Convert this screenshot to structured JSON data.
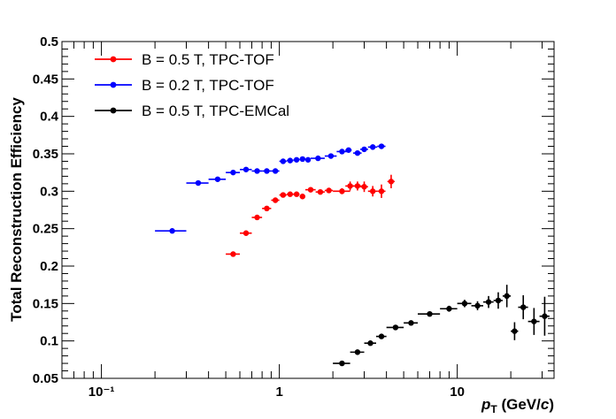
{
  "chart_data": {
    "type": "scatter",
    "title": "",
    "ylabel": "Total Reconstruction Efficiency",
    "xlabel_parts": {
      "p": "p",
      "sub": "T",
      "unit": " (GeV/",
      "c": "c",
      "close": ")"
    },
    "xscale": "log",
    "xlim": [
      0.06,
      35
    ],
    "ylim": [
      0.05,
      0.5
    ],
    "y_ticks": [
      "0.05",
      "0.1",
      "0.15",
      "0.2",
      "0.25",
      "0.3",
      "0.35",
      "0.4",
      "0.45",
      "0.5"
    ],
    "y_tick_values": [
      0.05,
      0.1,
      0.15,
      0.2,
      0.25,
      0.3,
      0.35,
      0.4,
      0.45,
      0.5
    ],
    "x_ticks": [
      "10⁻¹",
      "1",
      "10"
    ],
    "x_tick_values": [
      0.1,
      1,
      10
    ],
    "grid": false,
    "legend_position": "top-left",
    "series": [
      {
        "name": "B = 0.5 T, TPC-TOF",
        "color": "#ff0000",
        "points": [
          {
            "x": 0.55,
            "y": 0.216,
            "xlo": 0.5,
            "xhi": 0.6,
            "err": 0.0
          },
          {
            "x": 0.65,
            "y": 0.244,
            "xlo": 0.6,
            "xhi": 0.7,
            "err": 0.0
          },
          {
            "x": 0.75,
            "y": 0.265,
            "xlo": 0.7,
            "xhi": 0.8,
            "err": 0.0
          },
          {
            "x": 0.85,
            "y": 0.277,
            "xlo": 0.8,
            "xhi": 0.9,
            "err": 0.0
          },
          {
            "x": 0.95,
            "y": 0.288,
            "xlo": 0.9,
            "xhi": 1.0,
            "err": 0.0
          },
          {
            "x": 1.05,
            "y": 0.295,
            "xlo": 1.0,
            "xhi": 1.1,
            "err": 0.0
          },
          {
            "x": 1.15,
            "y": 0.296,
            "xlo": 1.1,
            "xhi": 1.2,
            "err": 0.002
          },
          {
            "x": 1.25,
            "y": 0.296,
            "xlo": 1.2,
            "xhi": 1.3,
            "err": 0.002
          },
          {
            "x": 1.35,
            "y": 0.293,
            "xlo": 1.3,
            "xhi": 1.4,
            "err": 0.002
          },
          {
            "x": 1.5,
            "y": 0.302,
            "xlo": 1.4,
            "xhi": 1.6,
            "err": 0.003
          },
          {
            "x": 1.7,
            "y": 0.299,
            "xlo": 1.6,
            "xhi": 1.8,
            "err": 0.003
          },
          {
            "x": 1.9,
            "y": 0.301,
            "xlo": 1.8,
            "xhi": 2.0,
            "err": 0.003
          },
          {
            "x": 2.25,
            "y": 0.3,
            "xlo": 2.0,
            "xhi": 2.5,
            "err": 0.004
          },
          {
            "x": 2.5,
            "y": 0.307,
            "xlo": 2.35,
            "xhi": 2.65,
            "err": 0.006
          },
          {
            "x": 2.75,
            "y": 0.307,
            "xlo": 2.6,
            "xhi": 2.9,
            "err": 0.006
          },
          {
            "x": 3.0,
            "y": 0.306,
            "xlo": 2.85,
            "xhi": 3.15,
            "err": 0.007
          },
          {
            "x": 3.35,
            "y": 0.3,
            "xlo": 3.15,
            "xhi": 3.55,
            "err": 0.007
          },
          {
            "x": 3.75,
            "y": 0.3,
            "xlo": 3.55,
            "xhi": 3.95,
            "err": 0.009
          },
          {
            "x": 4.25,
            "y": 0.313,
            "xlo": 4.05,
            "xhi": 4.45,
            "err": 0.009
          }
        ]
      },
      {
        "name": "B = 0.2 T, TPC-TOF",
        "color": "#0000ff",
        "points": [
          {
            "x": 0.25,
            "y": 0.247,
            "xlo": 0.2,
            "xhi": 0.3,
            "err": 0.0
          },
          {
            "x": 0.35,
            "y": 0.311,
            "xlo": 0.3,
            "xhi": 0.4,
            "err": 0.0
          },
          {
            "x": 0.45,
            "y": 0.316,
            "xlo": 0.4,
            "xhi": 0.5,
            "err": 0.0
          },
          {
            "x": 0.55,
            "y": 0.325,
            "xlo": 0.5,
            "xhi": 0.6,
            "err": 0.0
          },
          {
            "x": 0.65,
            "y": 0.329,
            "xlo": 0.6,
            "xhi": 0.7,
            "err": 0.0
          },
          {
            "x": 0.75,
            "y": 0.327,
            "xlo": 0.7,
            "xhi": 0.8,
            "err": 0.0
          },
          {
            "x": 0.85,
            "y": 0.327,
            "xlo": 0.8,
            "xhi": 0.9,
            "err": 0.0
          },
          {
            "x": 0.95,
            "y": 0.327,
            "xlo": 0.9,
            "xhi": 1.0,
            "err": 0.0
          },
          {
            "x": 1.05,
            "y": 0.34,
            "xlo": 1.0,
            "xhi": 1.1,
            "err": 0.0
          },
          {
            "x": 1.15,
            "y": 0.341,
            "xlo": 1.1,
            "xhi": 1.2,
            "err": 0.0
          },
          {
            "x": 1.25,
            "y": 0.342,
            "xlo": 1.2,
            "xhi": 1.3,
            "err": 0.0
          },
          {
            "x": 1.35,
            "y": 0.343,
            "xlo": 1.3,
            "xhi": 1.4,
            "err": 0.0
          },
          {
            "x": 1.45,
            "y": 0.342,
            "xlo": 1.4,
            "xhi": 1.5,
            "err": 0.0
          },
          {
            "x": 1.65,
            "y": 0.344,
            "xlo": 1.5,
            "xhi": 1.8,
            "err": 0.0
          },
          {
            "x": 1.95,
            "y": 0.347,
            "xlo": 1.8,
            "xhi": 2.1,
            "err": 0.0
          },
          {
            "x": 2.25,
            "y": 0.353,
            "xlo": 2.1,
            "xhi": 2.4,
            "err": 0.0
          },
          {
            "x": 2.45,
            "y": 0.355,
            "xlo": 2.35,
            "xhi": 2.55,
            "err": 0.0
          },
          {
            "x": 2.75,
            "y": 0.351,
            "xlo": 2.6,
            "xhi": 2.9,
            "err": 0.0
          },
          {
            "x": 3.0,
            "y": 0.356,
            "xlo": 2.85,
            "xhi": 3.15,
            "err": 0.0
          },
          {
            "x": 3.35,
            "y": 0.359,
            "xlo": 3.15,
            "xhi": 3.55,
            "err": 0.0
          },
          {
            "x": 3.75,
            "y": 0.36,
            "xlo": 3.55,
            "xhi": 3.95,
            "err": 0.0
          }
        ]
      },
      {
        "name": "B = 0.5 T, TPC-EMCal",
        "color": "#000000",
        "points": [
          {
            "x": 2.25,
            "y": 0.07,
            "xlo": 2.0,
            "xhi": 2.5,
            "err": 0.0
          },
          {
            "x": 2.75,
            "y": 0.085,
            "xlo": 2.5,
            "xhi": 3.0,
            "err": 0.0
          },
          {
            "x": 3.25,
            "y": 0.097,
            "xlo": 3.0,
            "xhi": 3.5,
            "err": 0.002
          },
          {
            "x": 3.75,
            "y": 0.106,
            "xlo": 3.5,
            "xhi": 4.0,
            "err": 0.002
          },
          {
            "x": 4.5,
            "y": 0.118,
            "xlo": 4.0,
            "xhi": 5.0,
            "err": 0.003
          },
          {
            "x": 5.5,
            "y": 0.124,
            "xlo": 5.0,
            "xhi": 6.0,
            "err": 0.003
          },
          {
            "x": 7.0,
            "y": 0.136,
            "xlo": 6.0,
            "xhi": 8.0,
            "err": 0.003
          },
          {
            "x": 9.0,
            "y": 0.143,
            "xlo": 8.0,
            "xhi": 10.0,
            "err": 0.004
          },
          {
            "x": 11.0,
            "y": 0.15,
            "xlo": 10.0,
            "xhi": 12.0,
            "err": 0.005
          },
          {
            "x": 13.0,
            "y": 0.147,
            "xlo": 12.0,
            "xhi": 14.0,
            "err": 0.006
          },
          {
            "x": 15.0,
            "y": 0.152,
            "xlo": 14.0,
            "xhi": 16.0,
            "err": 0.008
          },
          {
            "x": 17.0,
            "y": 0.154,
            "xlo": 16.0,
            "xhi": 18.0,
            "err": 0.011
          },
          {
            "x": 19.0,
            "y": 0.16,
            "xlo": 18.0,
            "xhi": 20.0,
            "err": 0.015
          },
          {
            "x": 21.0,
            "y": 0.113,
            "xlo": 20.0,
            "xhi": 22.0,
            "err": 0.012
          },
          {
            "x": 23.5,
            "y": 0.145,
            "xlo": 22.0,
            "xhi": 25.0,
            "err": 0.016
          },
          {
            "x": 27.0,
            "y": 0.126,
            "xlo": 25.0,
            "xhi": 29.0,
            "err": 0.018
          },
          {
            "x": 31.0,
            "y": 0.133,
            "xlo": 29.0,
            "xhi": 33.0,
            "err": 0.026
          }
        ]
      }
    ]
  }
}
